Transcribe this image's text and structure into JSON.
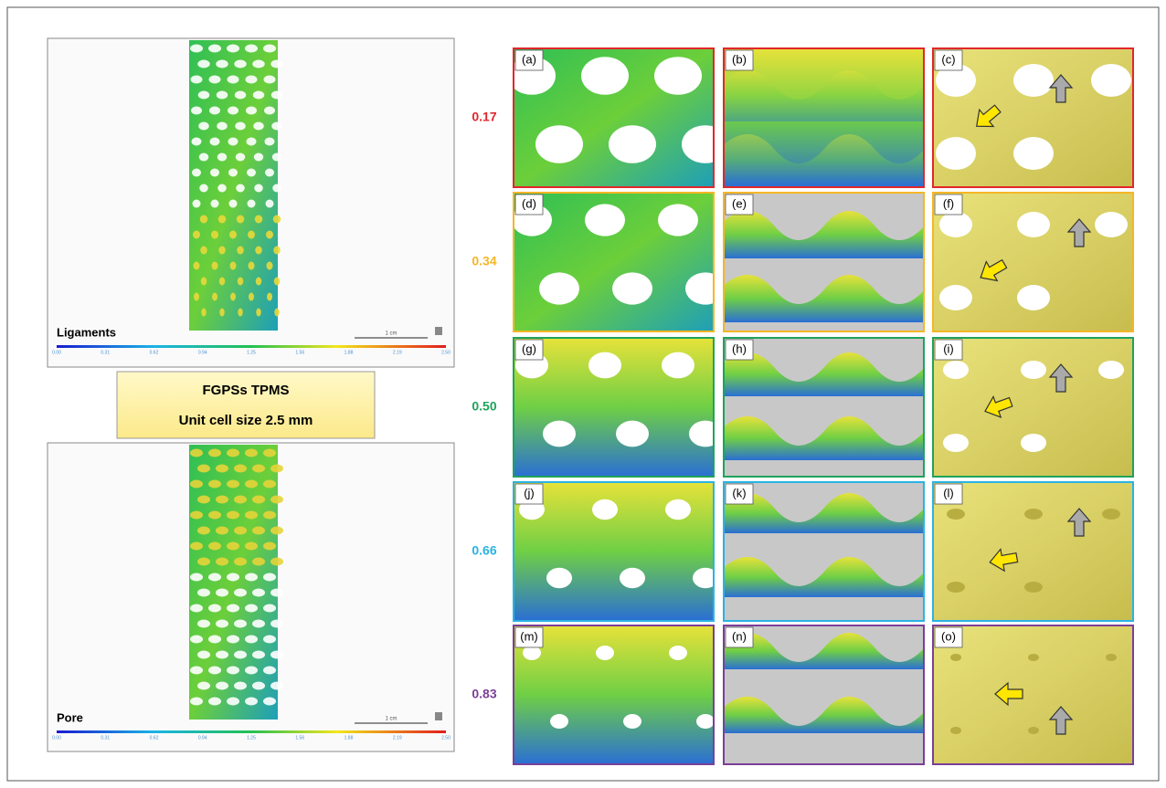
{
  "left_panels": [
    {
      "label": "Ligaments",
      "scale_label": "1 cm",
      "colorbar_ticks": [
        "0.00",
        "0.31",
        "0.62",
        "0.94",
        "1.25",
        "1.56",
        "1.88",
        "2.19",
        "2.50"
      ]
    },
    {
      "label": "Pore",
      "scale_label": "1 cm",
      "colorbar_ticks": [
        "0.00",
        "0.31",
        "0.62",
        "0.94",
        "1.25",
        "1.56",
        "1.88",
        "2.19",
        "2.50"
      ]
    }
  ],
  "center_box": {
    "title": "FGPSs TPMS",
    "subtitle": "Unit cell size 2.5 mm"
  },
  "rows": [
    {
      "label": "0.17",
      "color": "#e3262b",
      "panels": [
        "(a)",
        "(b)",
        "(c)"
      ]
    },
    {
      "label": "0.34",
      "color": "#f6b626",
      "panels": [
        "(d)",
        "(e)",
        "(f)"
      ]
    },
    {
      "label": "0.50",
      "color": "#1fa35c",
      "panels": [
        "(g)",
        "(h)",
        "(i)"
      ]
    },
    {
      "label": "0.66",
      "color": "#2ab3e3",
      "panels": [
        "(j)",
        "(k)",
        "(l)"
      ]
    },
    {
      "label": "0.83",
      "color": "#7b3f98",
      "panels": [
        "(m)",
        "(n)",
        "(o)"
      ]
    }
  ]
}
